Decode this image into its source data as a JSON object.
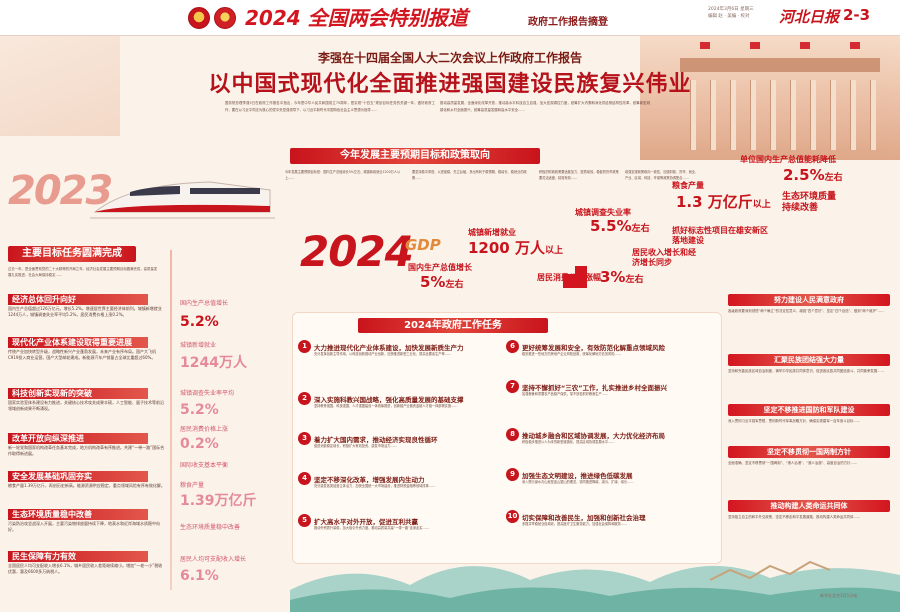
{
  "banner": {
    "title": "2024 全国两会特别报道",
    "subtitle": "政府工作报告摘登",
    "paper_name": "河北日报",
    "page_number": "2-3",
    "meta_line1": "2024年3月6日 星期三",
    "meta_line2": "编辑 赵 · 美编 · 校对"
  },
  "headline": {
    "sub": "李强在十四届全国人大二次会议上作政府工作报告",
    "main": "以中国式现代化全面推进强国建设民族复兴伟业"
  },
  "intro": [
    "国务院总理李强5日在政府工作报告中指出，今年是中华人民共和国成立75周年，是实现“十四五”规划目标任务的关键一年，做好政府工作，要在以习近平同志为核心的党中央坚强领导下，以习近平新时代中国特色社会主义思想为指导……",
    "推动高质量发展，全面深化改革开放，推动高水平科技自立自强，加大宏观调控力度，统筹扩大内需和深化供给侧结构性改革，统筹新型城镇化和乡村全面振兴，统筹高质量发展和高水平安全……"
  ],
  "anticipated": {
    "title": "今年发展主要预期目标和政策取向",
    "columns": [
      "今年发展主要预期目标是：国内生产总值增长5%左右；城镇新增就业1200万人以上……",
      "要坚持稳中求进、以进促稳、先立后破，多出有利于稳预期、稳增长、稳就业的政策……",
      "积极的财政政策要适度加力、提质增效。稳健的货币政策要灵活适度、精准有效……",
      "增强宏观政策取向一致性，加强财政、货币、就业、产业、区域、科技、环保等政策协调配合……"
    ]
  },
  "year_2023": "2023",
  "year_2024": "2024",
  "gdp_tag": "GDP",
  "targets": {
    "gdp": {
      "label": "国内生产总值增长",
      "value": "5%",
      "unit": "左右"
    },
    "jobs": {
      "label": "城镇新增就业",
      "value": "1200 万人",
      "unit": "以上"
    },
    "unemployment": {
      "label": "城镇调查失业率",
      "value": "5.5%",
      "unit": "左右"
    },
    "cpi": {
      "label": "居民消费价格涨幅",
      "value": "3%",
      "unit": "左右"
    },
    "income": {
      "label": "居民收入增长和经济增长同步"
    },
    "grain": {
      "label": "粮食产量",
      "value": "1.3 万亿斤",
      "unit": "以上"
    },
    "energy": {
      "label": "单位国内生产总值能耗降低",
      "value": "2.5%",
      "unit": "左右"
    },
    "eco": {
      "label": "生态环境质量持续改善"
    },
    "xiongan": {
      "label": "抓好标志性项目在雄安新区落地建设"
    }
  },
  "main_2023": {
    "title": "主要目标任务圆满完成",
    "intro": "过去一年，是全面贯彻党的二十大精神的开局之年，经济社会发展主要预期目标圆满完成，高质量发展扎实推进，社会大局保持稳定……",
    "sections": [
      {
        "title": "经济总体回升向好",
        "text": "国内生产总值超过126万亿元，增长5.2%，增速居世界主要经济体前列。城镇新增就业1244万人，城镇调查失业率平均5.2%。居民消费价格上涨0.2%。"
      },
      {
        "title": "现代化产业体系建设取得重要进展",
        "text": "传统产业加快转型升级，战略性新兴产业蓬勃发展，未来产业有序布局。国产大飞机C919投入商业运营。国产大型邮轮建成。新能源汽车产销量占全球比重超过60%。"
      },
      {
        "title": "科技创新实现新的突破",
        "text": "国家实验室体系建设有力推进，关键核心技术攻关成果丰硕，人工智能、量子技术等前沿领域创新成果不断涌现。"
      },
      {
        "title": "改革开放向纵深推进",
        "text": "新一轮党和国家机构改革任务基本完成，地方机构改革有序推进。共建“一带一路”国际合作取得新进展。"
      },
      {
        "title": "安全发展基础巩固夯实",
        "text": "粮食产量1.39万亿斤，再创历史新高。能源资源供应稳定，重点领域风险有序有效化解。"
      },
      {
        "title": "生态环境质量稳中改善",
        "text": "污染防治攻坚战深入开展，主要污染物排放量持续下降，地表水和近岸海域水质稳中向好。"
      },
      {
        "title": "民生保障有力有效",
        "text": "全国居民人均可支配收入增长6.1%，城乡居民收入差距继续缩小。增加“一老一小”税收优惠，惠及6600多万纳税人。"
      }
    ]
  },
  "timeline": [
    {
      "label": "国内生产总值增长",
      "value": "5.2%"
    },
    {
      "label": "城镇新增就业",
      "value": "1244万人"
    },
    {
      "label": "城镇调查失业率平均",
      "value": "5.2%"
    },
    {
      "label": "居民消费价格上涨",
      "value": "0.2%"
    },
    {
      "label": "国际收支基本平衡",
      "value": ""
    },
    {
      "label": "粮食产量",
      "value": "1.39万亿斤"
    },
    {
      "label": "生态环境质量稳中改善",
      "value": ""
    },
    {
      "label": "居民人均可支配收入增长",
      "value": "6.1%"
    }
  ],
  "tasks": {
    "title": "2024年政府工作任务",
    "items": [
      {
        "num": "1",
        "head": "大力推进现代化产业体系建设，加快发展新质生产力",
        "body": "充分发挥创新主导作用，以科技创新推动产业创新，加快推进新型工业化，提高全要素生产率……"
      },
      {
        "num": "2",
        "head": "深入实施科教兴国战略，强化高质量发展的基础支撑",
        "body": "坚持教育强国、科技强国、人才强国建设一体统筹推进，创新链产业链资金链人才链一体部署实施……"
      },
      {
        "num": "3",
        "head": "着力扩大国内需求，推动经济实现良性循环",
        "body": "促进消费稳定增长，积极扩大有效投资，激发市场活力……"
      },
      {
        "num": "4",
        "head": "坚定不移深化改革，增强发展内生动力",
        "body": "充分激发各类经营主体活力，加快全国统一大市场建设，推进财税金融等领域改革……"
      },
      {
        "num": "5",
        "head": "扩大高水平对外开放，促进互利共赢",
        "body": "推动外贸质升量稳，加大吸引外资力度，推动高质量共建“一带一路”走深走实……"
      },
      {
        "num": "6",
        "head": "更好统筹发展和安全，有效防范化解重点领域风险",
        "body": "稳妥推进一些地方的房地产企业风险处置，统筹化解地方债务风险……"
      },
      {
        "num": "7",
        "head": "坚持不懈抓好“三农”工作，扎实推进乡村全面振兴",
        "body": "加强粮食和重要农产品稳产保供，毫不放松抓好粮食生产……"
      },
      {
        "num": "8",
        "head": "推动城乡融合和区域协调发展，大力优化经济布局",
        "body": "积极稳步推进以人为本的新型城镇化，提高区域协调发展水平……"
      },
      {
        "num": "9",
        "head": "加强生态文明建设，推进绿色低碳发展",
        "body": "深入践行绿水青山就是金山银山的理念，协同推进降碳、减污、扩绿、增长……"
      },
      {
        "num": "10",
        "head": "切实保障和改善民生，加强和创新社会治理",
        "body": "多措并举稳就业促增收，提高医疗卫生服务能力，加强社会保障和服务……"
      }
    ]
  },
  "right_sections": [
    {
      "title": "努力建设人民满意政府",
      "text": "各级政府要深刻领悟“两个确立”的决定性意义，增强“四个意识”、坚定“四个自信”、做到“两个维护”……"
    },
    {
      "title": "汇聚民族团结强大力量",
      "text": "坚持和完善民族区域自治制度，铸牢中华民族共同体意识，促进各民族共同团结奋斗、共同繁荣发展……"
    },
    {
      "title": "坚定不移推进国防和军队建设",
      "text": "深入贯彻习近平强军思想，贯彻新时代军事战略方针，确保实现建军一百年奋斗目标……"
    },
    {
      "title": "坚定不移贯彻一国两制方针",
      "text": "全面准确、坚定不移贯彻“一国两制”、“港人治港”、“澳人治澳”、高度自治的方针……"
    },
    {
      "title": "推动构建人类命运共同体",
      "text": "坚持独立自主的和平外交政策，坚定不移走和平发展道路，推动构建人类命运共同体……"
    }
  ],
  "footer": "新华社北京3月5日电",
  "colors": {
    "accent": "#c8141c",
    "background": "#fbf3ea",
    "ribbon": "#d3151f"
  }
}
